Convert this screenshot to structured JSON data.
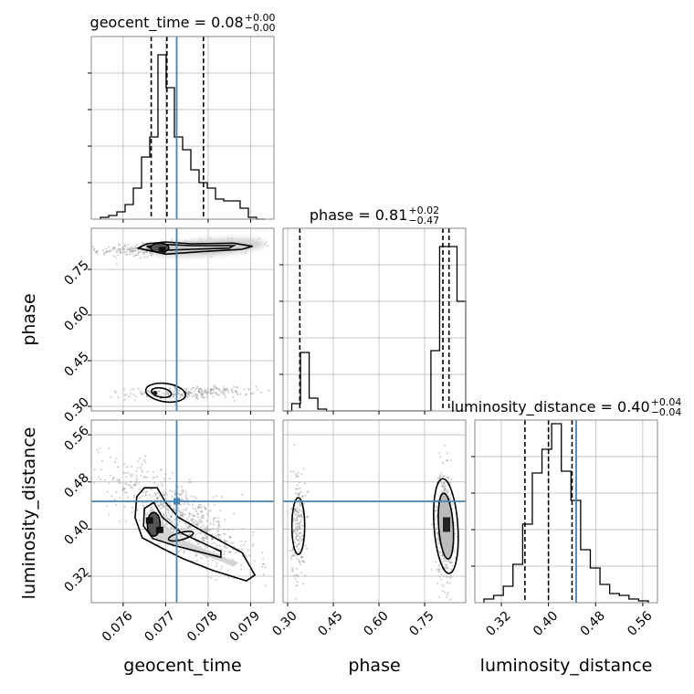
{
  "chart_data": {
    "type": "corner",
    "parameters": [
      {
        "key": "geocent_time",
        "axis_label": "geocent_time",
        "title_main": "geocent_time = 0.08",
        "title_sup": "+0.00",
        "title_sub": "−0.00",
        "range": [
          0.07525,
          0.07955
        ],
        "ticks": [
          0.076,
          0.077,
          0.078,
          0.079
        ],
        "tick_labels": [
          "0.076",
          "0.077",
          "0.078",
          "0.079"
        ],
        "truth": 0.07726,
        "quantiles": [
          0.07666,
          0.07703,
          0.07789
        ]
      },
      {
        "key": "phase",
        "axis_label": "phase",
        "title_main": "phase = 0.81",
        "title_sup": "+0.02",
        "title_sub": "−0.47",
        "range": [
          0.285,
          0.885
        ],
        "ticks": [
          0.3,
          0.45,
          0.6,
          0.75
        ],
        "tick_labels": [
          "0.30",
          "0.45",
          "0.60",
          "0.75"
        ],
        "truth": null,
        "quantiles": [
          0.34,
          0.81,
          0.83
        ]
      },
      {
        "key": "luminosity_distance",
        "axis_label": "luminosity_distance",
        "title_main": "luminosity_distance = 0.40",
        "title_sup": "+0.04",
        "title_sub": "−0.04",
        "range": [
          0.275,
          0.585
        ],
        "ticks": [
          0.32,
          0.4,
          0.48,
          0.56
        ],
        "tick_labels": [
          "0.32",
          "0.40",
          "0.48",
          "0.56"
        ],
        "truth": 0.447,
        "quantiles": [
          0.36,
          0.4,
          0.44
        ]
      }
    ],
    "histograms": {
      "geocent_time": [
        0.01,
        0.02,
        0.04,
        0.08,
        0.17,
        0.34,
        0.45,
        0.9,
        0.72,
        0.45,
        0.38,
        0.27,
        0.2,
        0.17,
        0.11,
        0.1,
        0.1,
        0.06,
        0.01,
        0.0
      ],
      "phase": [
        0.0,
        0.04,
        0.32,
        0.07,
        0.01,
        0.0,
        0.0,
        0.0,
        0.0,
        0.0,
        0.0,
        0.0,
        0.0,
        0.0,
        0.0,
        0.0,
        0.0,
        0.33,
        0.9,
        0.9,
        0.6
      ],
      "luminosity_distance": [
        0.02,
        0.04,
        0.09,
        0.21,
        0.43,
        0.71,
        0.84,
        0.98,
        0.72,
        0.56,
        0.29,
        0.19,
        0.1,
        0.05,
        0.04,
        0.02,
        0.01
      ]
    },
    "colors": {
      "truth": "#4682b4",
      "lines": "#000000",
      "grid": "#b0b0b0",
      "scatter": "#808080"
    },
    "grid": true
  }
}
